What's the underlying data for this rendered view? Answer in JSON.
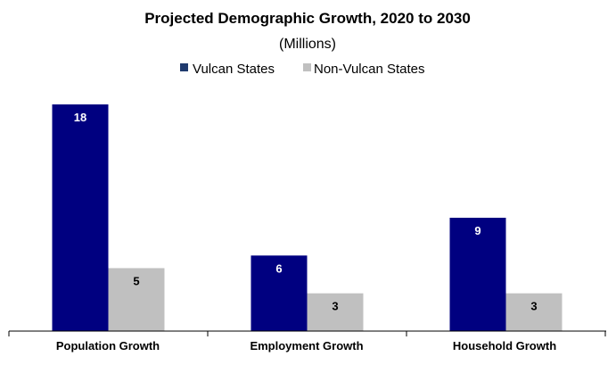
{
  "chart_data": {
    "type": "bar",
    "title": "Projected Demographic Growth, 2020 to 2030",
    "subtitle": "(Millions)",
    "categories": [
      "Population Growth",
      "Employment Growth",
      "Household Growth"
    ],
    "series": [
      {
        "name": "Vulcan States",
        "values": [
          18,
          6,
          9
        ],
        "color": "#000080",
        "label_color": "#ffffff"
      },
      {
        "name": "Non-Vulcan States",
        "values": [
          5,
          3,
          3
        ],
        "color": "#c0c0c0",
        "label_color": "#000000"
      }
    ],
    "ylim": [
      0,
      18
    ],
    "legend": "top-center",
    "grid": false,
    "xlabel": "",
    "ylabel": ""
  }
}
